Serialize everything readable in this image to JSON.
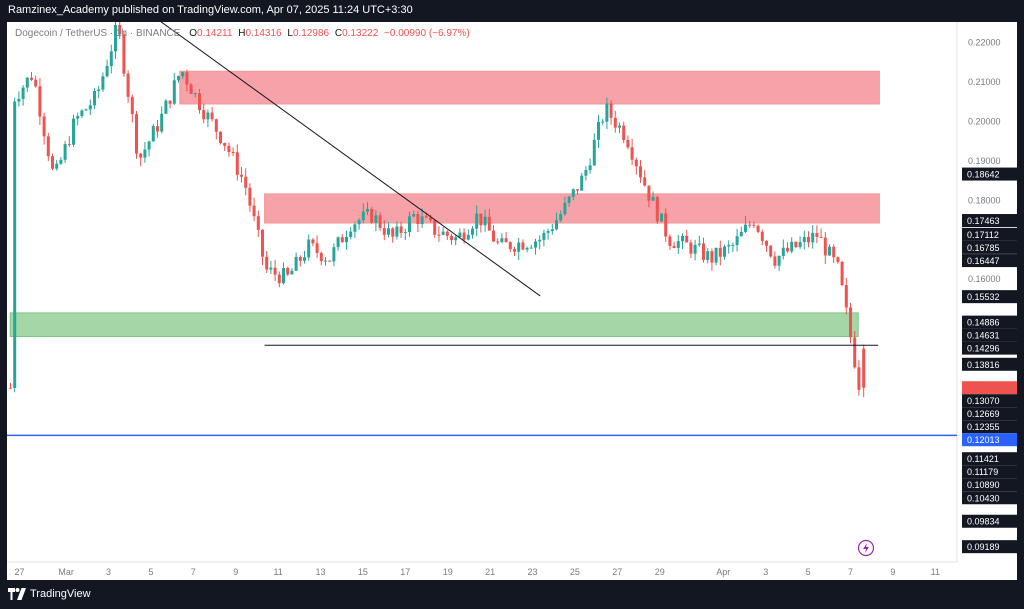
{
  "header": {
    "published_line": "Ramzinex_Academy published on TradingView.com, Apr 07, 2025 11:24 UTC+3:30"
  },
  "legend": {
    "symbol": "Dogecoin / TetherUS · 1h · BINANCE",
    "open_label": "O",
    "open": "0.14211",
    "high_label": "H",
    "high": "0.14316",
    "low_label": "L",
    "low": "0.12986",
    "close_label": "C",
    "close": "0.13222",
    "change": "−0.00990 (−6.97%)"
  },
  "footer": {
    "brand": "TradingView"
  },
  "colors": {
    "up": "#26a69a",
    "down": "#ef5350",
    "supply_zone": "#f7a1a8",
    "demand_zone": "#a5d6a7",
    "horizontal_line": "#2962ff",
    "frame": "#131722",
    "current_price_label": "#ef5350",
    "highlight_label": "#2962ff",
    "lightning_icon": "#9c27b0"
  },
  "icons": {
    "alert": "lightning-icon",
    "brand": "tradingview-logo"
  },
  "chart_data": {
    "type": "candlestick",
    "title": "Dogecoin / TetherUS · 1h · BINANCE",
    "ylim": [
      0.088,
      0.225
    ],
    "x_tick_labels": [
      "27",
      "Mar",
      "3",
      "5",
      "7",
      "9",
      "11",
      "13",
      "15",
      "17",
      "19",
      "21",
      "23",
      "25",
      "27",
      "29",
      "Apr",
      "3",
      "5",
      "7",
      "9",
      "11"
    ],
    "y_tick_labels": [
      "0.22000",
      "0.21000",
      "0.20000",
      "0.19000",
      "0.18000",
      "0.16000"
    ],
    "price_labels": [
      {
        "value": 0.18642,
        "text": "0.18642",
        "style": "dark"
      },
      {
        "value": 0.17463,
        "text": "0.17463",
        "style": "dark"
      },
      {
        "value": 0.17112,
        "text": "0.17112",
        "style": "dark"
      },
      {
        "value": 0.16785,
        "text": "0.16785",
        "style": "dark"
      },
      {
        "value": 0.16447,
        "text": "0.16447",
        "style": "dark"
      },
      {
        "value": 0.15532,
        "text": "0.15532",
        "style": "dark"
      },
      {
        "value": 0.14886,
        "text": "0.14886",
        "style": "dark"
      },
      {
        "value": 0.14631,
        "text": "0.14631",
        "style": "dark"
      },
      {
        "value": 0.14296,
        "text": "0.14296",
        "style": "dark"
      },
      {
        "value": 0.13816,
        "text": "0.13816",
        "style": "dark"
      },
      {
        "value": 0.13222,
        "text": "",
        "style": "current"
      },
      {
        "value": 0.1307,
        "text": "0.13070",
        "style": "dark"
      },
      {
        "value": 0.12669,
        "text": "0.12669",
        "style": "dark"
      },
      {
        "value": 0.12355,
        "text": "0.12355",
        "style": "dark"
      },
      {
        "value": 0.12013,
        "text": "0.12013",
        "style": "blue"
      },
      {
        "value": 0.11421,
        "text": "0.11421",
        "style": "dark"
      },
      {
        "value": 0.11179,
        "text": "0.11179",
        "style": "dark"
      },
      {
        "value": 0.1089,
        "text": "0.10890",
        "style": "dark"
      },
      {
        "value": 0.1043,
        "text": "0.10430",
        "style": "dark"
      },
      {
        "value": 0.09834,
        "text": "0.09834",
        "style": "dark"
      },
      {
        "value": 0.09189,
        "text": "0.09189",
        "style": "dark"
      }
    ],
    "zones": [
      {
        "kind": "supply",
        "top": 0.2125,
        "bottom": 0.2042,
        "from": "Mar 6",
        "to": "Apr 8"
      },
      {
        "kind": "supply",
        "top": 0.1814,
        "bottom": 0.174,
        "from": "Mar 10",
        "to": "Apr 8"
      },
      {
        "kind": "demand",
        "top": 0.1512,
        "bottom": 0.1452,
        "from": "Feb 26",
        "to": "Apr 7"
      }
    ],
    "lines": [
      {
        "kind": "trendline",
        "from": {
          "date": "Mar 5",
          "price": 0.2255
        },
        "to": {
          "date": "Mar 23",
          "price": 0.1555
        }
      },
      {
        "kind": "horizontal",
        "from": "Mar 10",
        "to": "Apr 7",
        "price": 0.143
      },
      {
        "kind": "horizontal",
        "price": 0.12013
      }
    ],
    "close_path": [
      [
        "Feb 26",
        0.205
      ],
      [
        "Feb 27",
        0.212
      ],
      [
        "Feb 28",
        0.185
      ],
      [
        "Mar 1",
        0.2
      ],
      [
        "Mar 2",
        0.206
      ],
      [
        "Mar 3",
        0.224
      ],
      [
        "Mar 4",
        0.19
      ],
      [
        "Mar 5",
        0.2
      ],
      [
        "Mar 6",
        0.213
      ],
      [
        "Mar 7",
        0.203
      ],
      [
        "Mar 8",
        0.195
      ],
      [
        "Mar 9",
        0.184
      ],
      [
        "Mar 10",
        0.162
      ],
      [
        "Mar 11",
        0.16
      ],
      [
        "Mar 12",
        0.168
      ],
      [
        "Mar 13",
        0.165
      ],
      [
        "Mar 14",
        0.174
      ],
      [
        "Mar 15",
        0.176
      ],
      [
        "Mar 16",
        0.17
      ],
      [
        "Mar 17",
        0.176
      ],
      [
        "Mar 18",
        0.172
      ],
      [
        "Mar 19",
        0.17
      ],
      [
        "Mar 20",
        0.176
      ],
      [
        "Mar 21",
        0.168
      ],
      [
        "Mar 22",
        0.169
      ],
      [
        "Mar 23",
        0.17
      ],
      [
        "Mar 24",
        0.177
      ],
      [
        "Mar 25",
        0.186
      ],
      [
        "Mar 26",
        0.203
      ],
      [
        "Mar 27",
        0.196
      ],
      [
        "Mar 28",
        0.182
      ],
      [
        "Mar 29",
        0.17
      ],
      [
        "Mar 30",
        0.168
      ],
      [
        "Mar 31",
        0.165
      ],
      [
        "Apr 1",
        0.168
      ],
      [
        "Apr 2",
        0.175
      ],
      [
        "Apr 3",
        0.165
      ],
      [
        "Apr 4",
        0.168
      ],
      [
        "Apr 5",
        0.171
      ],
      [
        "Apr 6",
        0.162
      ],
      [
        "Apr 7",
        0.13222
      ]
    ]
  }
}
